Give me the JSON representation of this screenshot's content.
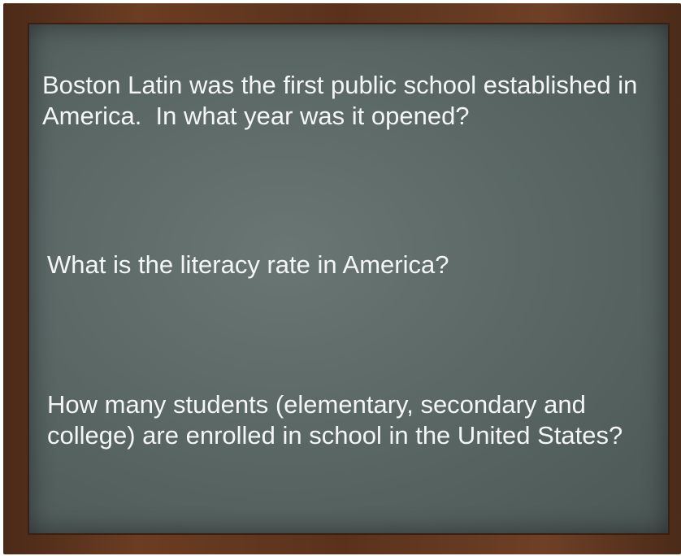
{
  "questions": [
    "Boston Latin was the first public school established in America.  In what year was it opened?",
    "What is the literacy rate in America?",
    "How many students (elementary, secondary and college) are enrolled in school in the United States?"
  ]
}
